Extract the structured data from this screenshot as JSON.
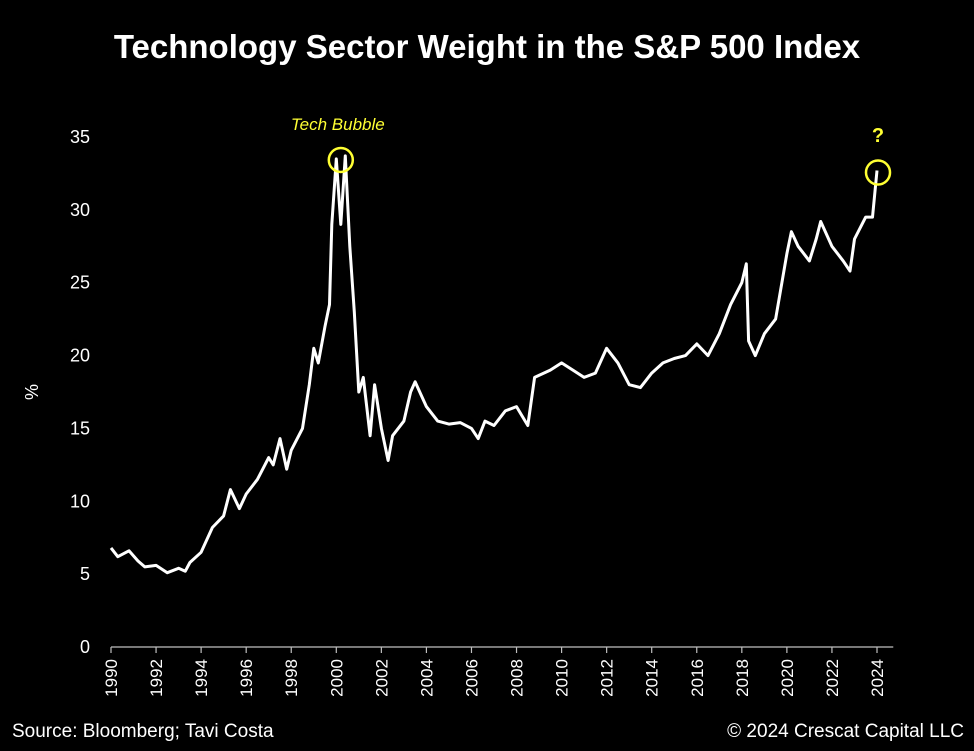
{
  "chart_data": {
    "type": "line",
    "title": "Technology Sector Weight in the S&P 500 Index",
    "xlabel": "",
    "ylabel": "%",
    "xlim": [
      1990,
      2024.5
    ],
    "ylim": [
      0,
      35
    ],
    "yticks": [
      0,
      5,
      10,
      15,
      20,
      25,
      30,
      35
    ],
    "xticks": [
      1990,
      1992,
      1994,
      1996,
      1998,
      2000,
      2002,
      2004,
      2006,
      2008,
      2010,
      2012,
      2014,
      2016,
      2018,
      2020,
      2022,
      2024
    ],
    "grid": false,
    "line_color": "#ffffff",
    "annotation_color": "#ffff33",
    "annotations": [
      {
        "label": "Tech Bubble",
        "x": 2000.2,
        "y": 33.7
      },
      {
        "label": "?",
        "x": 2024.0,
        "y": 32.7
      }
    ],
    "x": [
      1990,
      1990.3,
      1990.8,
      1991.2,
      1991.5,
      1992,
      1992.5,
      1993,
      1993.3,
      1993.5,
      1994,
      1994.5,
      1995,
      1995.3,
      1995.7,
      1996,
      1996.5,
      1997,
      1997.2,
      1997.5,
      1997.8,
      1998,
      1998.5,
      1998.8,
      1999,
      1999.2,
      1999.5,
      1999.7,
      1999.8,
      2000,
      2000.2,
      2000.4,
      2000.6,
      2000.8,
      2001,
      2001.2,
      2001.5,
      2001.7,
      2002,
      2002.3,
      2002.5,
      2003,
      2003.3,
      2003.5,
      2004,
      2004.5,
      2005,
      2005.5,
      2006,
      2006.3,
      2006.6,
      2007,
      2007.5,
      2008,
      2008.5,
      2008.8,
      2009.5,
      2010,
      2010.5,
      2011,
      2011.5,
      2012,
      2012.5,
      2013,
      2013.5,
      2014,
      2014.5,
      2015,
      2015.5,
      2016,
      2016.5,
      2017,
      2017.5,
      2018,
      2018.2,
      2018.3,
      2018.6,
      2019,
      2019.5,
      2020,
      2020.2,
      2020.5,
      2021,
      2021.3,
      2021.5,
      2022,
      2022.5,
      2022.8,
      2023,
      2023.5,
      2023.8,
      2024
    ],
    "values": [
      6.8,
      6.2,
      6.6,
      5.9,
      5.5,
      5.6,
      5.1,
      5.4,
      5.2,
      5.8,
      6.5,
      8.2,
      9.0,
      10.8,
      9.5,
      10.5,
      11.5,
      13.0,
      12.5,
      14.3,
      12.2,
      13.5,
      15.0,
      18.0,
      20.5,
      19.5,
      22.0,
      23.5,
      29.0,
      33.5,
      29.0,
      33.7,
      27.5,
      23.0,
      17.5,
      18.5,
      14.5,
      18.0,
      15.0,
      12.8,
      14.5,
      15.5,
      17.5,
      18.2,
      16.5,
      15.5,
      15.3,
      15.4,
      15.0,
      14.3,
      15.5,
      15.2,
      16.2,
      16.5,
      15.2,
      18.5,
      19.0,
      19.5,
      19.0,
      18.5,
      18.8,
      20.5,
      19.5,
      18.0,
      17.8,
      18.8,
      19.5,
      19.8,
      20.0,
      20.8,
      20.0,
      21.5,
      23.5,
      25.0,
      26.3,
      21.0,
      20.0,
      21.5,
      22.5,
      27.0,
      28.5,
      27.5,
      26.5,
      28.0,
      29.2,
      27.5,
      26.5,
      25.8,
      28.0,
      29.5,
      29.5,
      32.7
    ]
  },
  "footer": {
    "source": "Source: Bloomberg; Tavi Costa",
    "copyright": "© 2024 Crescat Capital LLC"
  }
}
